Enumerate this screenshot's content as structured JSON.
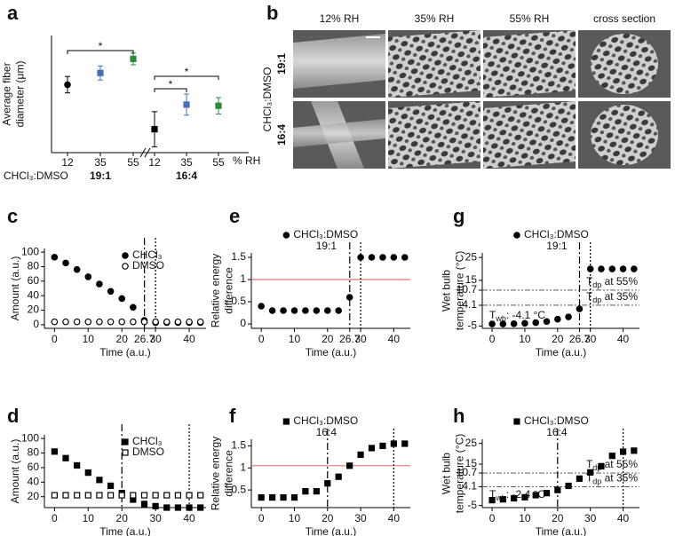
{
  "image_panel": {
    "panel": "b",
    "columns": [
      "12% RH",
      "35% RH",
      "55% RH",
      "cross section"
    ],
    "rows": [
      "19:1",
      "16:4"
    ],
    "row_title": "CHCl₃:DMSO"
  },
  "chart_data": [
    {
      "panel": "a",
      "type": "errorbar",
      "ylabel": [
        "Average fiber",
        "diameter (μm)"
      ],
      "ylim": [
        1,
        6
      ],
      "categories": [
        "12",
        "35",
        "55",
        "12",
        "35",
        "55"
      ],
      "values": [
        3.9,
        4.4,
        5.0,
        2.0,
        3.05,
        3.0
      ],
      "errors": [
        0.35,
        0.3,
        0.25,
        0.75,
        0.45,
        0.35
      ],
      "colors": [
        "#000000",
        "#4a6fb5",
        "#2e8b3e",
        "#000000",
        "#4a6fb5",
        "#2e8b3e"
      ],
      "markers": [
        "circle",
        "square",
        "square",
        "square",
        "square",
        "square"
      ],
      "groups": [
        "19:1",
        "16:4"
      ],
      "group_title": "CHCl₃:DMSO",
      "x_unit": "% RH",
      "significance": [
        "*",
        "*",
        "*"
      ]
    },
    {
      "panel": "c",
      "type": "scatter",
      "xlabel": "Time (a.u.)",
      "ylabel": [
        "Amount (a.u.)"
      ],
      "x": [
        0,
        3.33,
        6.67,
        10,
        13.33,
        16.67,
        20,
        23.33,
        26.67,
        30,
        33.33,
        36.67,
        40,
        43.33
      ],
      "xlim": [
        -3,
        45
      ],
      "xticks": [
        0,
        10,
        20,
        26.7,
        30,
        40
      ],
      "ylim": [
        -5,
        105
      ],
      "yticks": [
        0,
        20,
        40,
        60,
        80,
        100
      ],
      "series": [
        {
          "name": "CHCl₃",
          "marker": "circle",
          "color": "#000000",
          "values": [
            93,
            85,
            76,
            66,
            56,
            46,
            36,
            24,
            6,
            3,
            3,
            3,
            3,
            3
          ]
        },
        {
          "name": "DMSO",
          "marker": "open-circle",
          "color": "#000000",
          "values": [
            4,
            4,
            4,
            4,
            4,
            4,
            4,
            4,
            4,
            4,
            4,
            4,
            4,
            4
          ]
        }
      ],
      "vlines": [
        {
          "value": 26.7,
          "style": "dashdot",
          "color": "#000000"
        },
        {
          "value": 30,
          "style": "dotted",
          "color": "#000000"
        }
      ]
    },
    {
      "panel": "d",
      "type": "scatter",
      "xlabel": "Time (a.u.)",
      "ylabel": [
        "Amount (a.u.)"
      ],
      "x": [
        0,
        3.33,
        6.67,
        10,
        13.33,
        16.67,
        20,
        23.33,
        26.67,
        30,
        33.33,
        36.67,
        40,
        43.33
      ],
      "xlim": [
        -3,
        45
      ],
      "xticks": [
        0,
        10,
        20,
        30,
        40
      ],
      "ylim": [
        5,
        105
      ],
      "yticks": [
        20,
        40,
        60,
        80,
        100
      ],
      "series": [
        {
          "name": "CHCl₃",
          "marker": "square",
          "color": "#000000",
          "values": [
            82,
            73,
            63,
            53,
            43,
            35,
            25,
            16,
            10,
            7,
            5,
            5,
            5,
            5
          ]
        },
        {
          "name": "DMSO",
          "marker": "open-square",
          "color": "#000000",
          "values": [
            22,
            22,
            22,
            22,
            22,
            22,
            22,
            22,
            22,
            22,
            22,
            22,
            22,
            22
          ]
        }
      ],
      "vlines": [
        {
          "value": 20,
          "style": "dashdot",
          "color": "#000000"
        },
        {
          "value": 40,
          "style": "dotted",
          "color": "#000000"
        }
      ]
    },
    {
      "panel": "e",
      "type": "scatter",
      "xlabel": "Time (a.u.)",
      "ylabel": [
        "Relative energy",
        "difference"
      ],
      "subtitle": "19:1",
      "x": [
        0,
        3.33,
        6.67,
        10,
        13.33,
        16.67,
        20,
        23.33,
        26.67,
        30,
        33.33,
        36.67,
        40,
        43.33
      ],
      "xlim": [
        -3,
        45
      ],
      "xticks": [
        0,
        10,
        20,
        26.7,
        30,
        40
      ],
      "ylim": [
        -0.1,
        1.6
      ],
      "yticks": [
        0,
        0.5,
        1,
        1.5
      ],
      "series": [
        {
          "name": "CHCl₃:DMSO",
          "marker": "circle",
          "color": "#000000",
          "values": [
            0.4,
            0.3,
            0.3,
            0.3,
            0.3,
            0.3,
            0.3,
            0.3,
            0.6,
            1.5,
            1.5,
            1.5,
            1.5,
            1.5
          ]
        }
      ],
      "hlines": [
        {
          "value": 1,
          "style": "solid",
          "color": "#d9534f"
        }
      ],
      "vlines": [
        {
          "value": 26.7,
          "style": "dashdot",
          "color": "#000000"
        },
        {
          "value": 30,
          "style": "dotted",
          "color": "#000000"
        }
      ]
    },
    {
      "panel": "f",
      "type": "scatter",
      "xlabel": "Time (a.u.)",
      "ylabel": [
        "Relative energy",
        "difference"
      ],
      "subtitle": "16:4",
      "x": [
        0,
        3.33,
        6.67,
        10,
        13.33,
        16.67,
        20,
        23.33,
        26.67,
        30,
        33.33,
        36.67,
        40,
        43.33
      ],
      "xlim": [
        -3,
        45
      ],
      "xticks": [
        0,
        10,
        20,
        30,
        40
      ],
      "ylim": [
        0.1,
        1.65
      ],
      "yticks": [
        0.5,
        1,
        1.5
      ],
      "series": [
        {
          "name": "CHCl₃:DMSO",
          "marker": "square",
          "color": "#000000",
          "values": [
            0.33,
            0.33,
            0.33,
            0.33,
            0.47,
            0.47,
            0.65,
            0.8,
            1.05,
            1.3,
            1.45,
            1.5,
            1.55,
            1.55
          ]
        }
      ],
      "hlines": [
        {
          "value": 1.05,
          "style": "solid",
          "color": "#d9534f"
        }
      ],
      "vlines": [
        {
          "value": 20,
          "style": "dashdot",
          "color": "#000000"
        },
        {
          "value": 40,
          "style": "dotted",
          "color": "#000000"
        }
      ]
    },
    {
      "panel": "g",
      "type": "scatter",
      "xlabel": "Time (a.u.)",
      "ylabel": [
        "Wet bulb",
        "temperature (°C)"
      ],
      "subtitle": "19:1",
      "x": [
        0,
        3.33,
        6.67,
        10,
        13.33,
        16.67,
        20,
        23.33,
        26.67,
        30,
        33.33,
        36.67,
        40,
        43.33
      ],
      "xlim": [
        -3,
        45
      ],
      "xticks": [
        0,
        10,
        20,
        26.7,
        30,
        40
      ],
      "ylim": [
        -6,
        27
      ],
      "yticks": [
        -5,
        4.1,
        10.7,
        15,
        25
      ],
      "series": [
        {
          "name": "CHCl₃:DMSO",
          "marker": "circle",
          "color": "#000000",
          "values": [
            -4.1,
            -4.1,
            -4,
            -3.8,
            -3.5,
            -3,
            -2,
            -1,
            2.5,
            20,
            20,
            20,
            20,
            20
          ]
        }
      ],
      "hlines": [
        {
          "value": 10.7,
          "style": "dashdotdot",
          "color": "#444444",
          "label": {
            "main": "T",
            "sub": "dp",
            "rest": " at 55%"
          }
        },
        {
          "value": 4.1,
          "style": "dashdotdot",
          "color": "#444444",
          "label": {
            "main": "T",
            "sub": "dp",
            "rest": " at 35%"
          }
        }
      ],
      "note": {
        "main": "T",
        "sub": "wb",
        "rest": ": -4.1 °C"
      },
      "vlines": [
        {
          "value": 26.7,
          "style": "dashdot",
          "color": "#000000"
        },
        {
          "value": 30,
          "style": "dotted",
          "color": "#000000"
        }
      ]
    },
    {
      "panel": "h",
      "type": "scatter",
      "xlabel": "Time (a.u.)",
      "ylabel": [
        "Wet bulb",
        "temperature (°C)"
      ],
      "subtitle": "16:4",
      "x": [
        0,
        3.33,
        6.67,
        10,
        13.33,
        16.67,
        20,
        23.33,
        26.67,
        30,
        33.33,
        36.67,
        40,
        43.33
      ],
      "xlim": [
        -3,
        45
      ],
      "xticks": [
        0,
        10,
        20,
        30,
        40
      ],
      "ylim": [
        -6,
        27
      ],
      "yticks": [
        -5,
        4.1,
        10.7,
        15,
        25
      ],
      "series": [
        {
          "name": "CHCl₃:DMSO",
          "marker": "square",
          "color": "#000000",
          "values": [
            -2.4,
            -2,
            -1.5,
            -1,
            0,
            1,
            2.5,
            4.5,
            8,
            11,
            14,
            19,
            21,
            21.5
          ]
        }
      ],
      "hlines": [
        {
          "value": 10.7,
          "style": "dashdotdot",
          "color": "#444444",
          "label": {
            "main": "T",
            "sub": "dp",
            "rest": " at 55%"
          }
        },
        {
          "value": 4.1,
          "style": "dashdotdot",
          "color": "#444444",
          "label": {
            "main": "T",
            "sub": "dp",
            "rest": " at 35%"
          }
        }
      ],
      "note": {
        "main": "T",
        "sub": "wb",
        "rest": ": -2.4 °C"
      },
      "vlines": [
        {
          "value": 20,
          "style": "dashdot",
          "color": "#000000"
        },
        {
          "value": 40,
          "style": "dotted",
          "color": "#000000"
        }
      ]
    }
  ]
}
